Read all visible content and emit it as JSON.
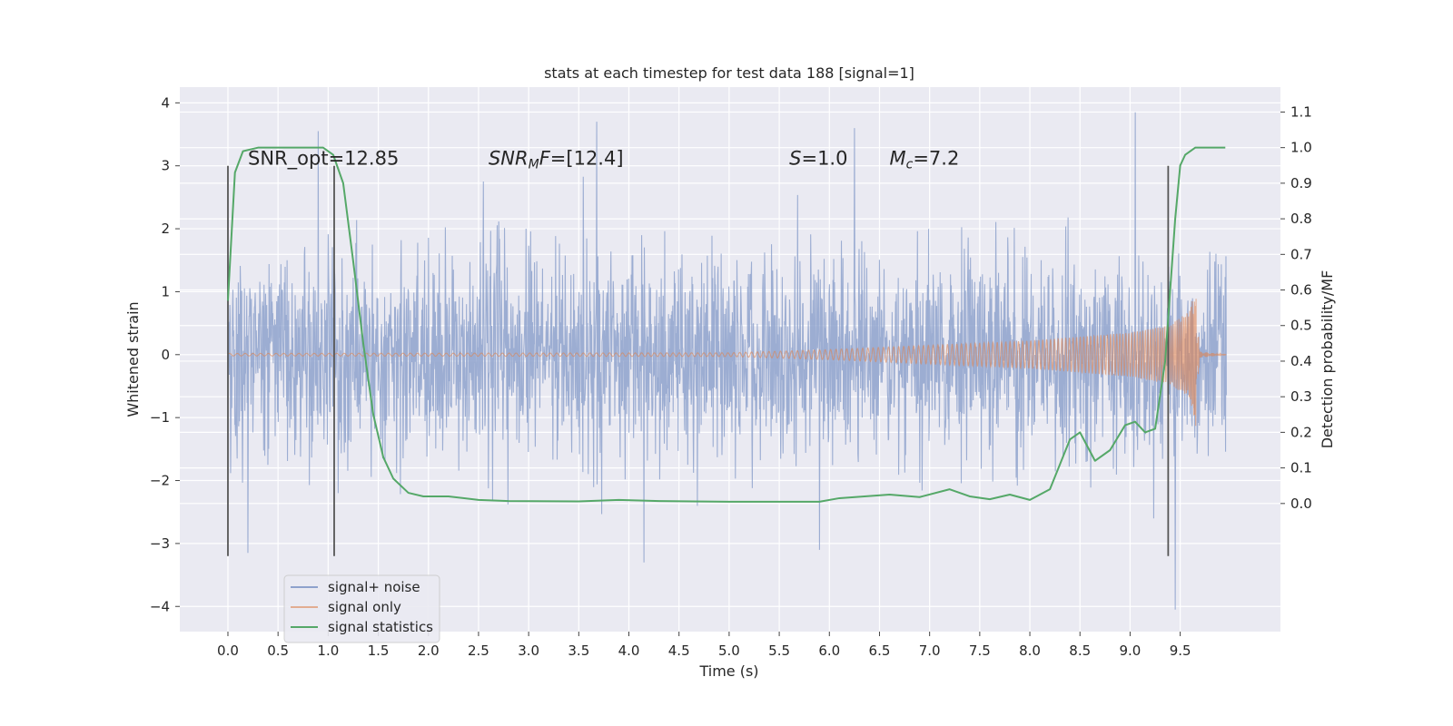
{
  "chart_data": {
    "type": "line",
    "title": "stats at each timestep for test data 188 [signal=1]",
    "xlabel": "Time (s)",
    "ylabel": "Whitened strain",
    "y2label": "Detection probability/MF",
    "xlim": [
      -0.48,
      10.5
    ],
    "ylim": [
      -4.4,
      4.25
    ],
    "y2lim": [
      -0.36,
      1.17
    ],
    "x_ticks": [
      "0.0",
      "0.5",
      "1.0",
      "1.5",
      "2.0",
      "2.5",
      "3.0",
      "3.5",
      "4.0",
      "4.5",
      "5.0",
      "5.5",
      "6.0",
      "6.5",
      "7.0",
      "7.5",
      "8.0",
      "8.5",
      "9.0",
      "9.5"
    ],
    "y_ticks": [
      "4",
      "3",
      "2",
      "1",
      "0",
      "−1",
      "−2",
      "−3",
      "−4"
    ],
    "y2_ticks": [
      "1.1",
      "1.0",
      "0.9",
      "0.8",
      "0.7",
      "0.6",
      "0.5",
      "0.4",
      "0.3",
      "0.2",
      "0.1",
      "0.0"
    ],
    "grid": true,
    "legend_position": "lower-left",
    "colors": {
      "background": "#eaeaf2",
      "noise": "#8ea2cc",
      "signal": "#dd8452",
      "stat": "#55a868",
      "vline": "#555555"
    },
    "annotations": [
      {
        "text": "SNR_opt=12.85",
        "x": 0.2,
        "y": 3.0
      },
      {
        "text": "SNRMF=[12.4]",
        "x": 2.6,
        "y": 3.0
      },
      {
        "text": "S=1.0",
        "x": 5.6,
        "y": 3.0
      },
      {
        "text": "Mc=7.2",
        "x": 6.6,
        "y": 3.0
      }
    ],
    "vertical_lines": [
      {
        "x": 0.0,
        "ymin": -3.2,
        "ymax": 3.0
      },
      {
        "x": 1.06,
        "ymin": -3.2,
        "ymax": 3.0
      },
      {
        "x": 9.38,
        "ymin": -3.2,
        "ymax": 3.0
      }
    ],
    "series": [
      {
        "name": "signal+ noise",
        "x_range": [
          0.0,
          9.96
        ],
        "amplitude_std": 0.8,
        "peaks": [
          {
            "x": 0.2,
            "y": -3.15
          },
          {
            "x": 0.9,
            "y": 3.55
          },
          {
            "x": 1.1,
            "y": -2.2
          },
          {
            "x": 2.55,
            "y": 2.75
          },
          {
            "x": 3.68,
            "y": 3.7
          },
          {
            "x": 4.15,
            "y": -3.3
          },
          {
            "x": 5.9,
            "y": -3.1
          },
          {
            "x": 6.25,
            "y": 3.6
          },
          {
            "x": 9.05,
            "y": 3.85
          },
          {
            "x": 9.45,
            "y": -4.05
          }
        ]
      },
      {
        "name": "signal only",
        "description": "chirp",
        "envelope": [
          {
            "x": 0.0,
            "y": 0.02
          },
          {
            "x": 5.0,
            "y": 0.03
          },
          {
            "x": 6.0,
            "y": 0.08
          },
          {
            "x": 7.0,
            "y": 0.15
          },
          {
            "x": 8.0,
            "y": 0.22
          },
          {
            "x": 9.0,
            "y": 0.35
          },
          {
            "x": 9.4,
            "y": 0.47
          },
          {
            "x": 9.6,
            "y": 0.7
          },
          {
            "x": 9.67,
            "y": 1.25
          },
          {
            "x": 9.69,
            "y": 0.05
          },
          {
            "x": 9.96,
            "y": 0.0
          }
        ]
      },
      {
        "name": "signal statistics",
        "axis": "right",
        "points": [
          {
            "x": 0.0,
            "y": 0.57
          },
          {
            "x": 0.07,
            "y": 0.93
          },
          {
            "x": 0.15,
            "y": 0.99
          },
          {
            "x": 0.3,
            "y": 1.0
          },
          {
            "x": 0.6,
            "y": 1.0
          },
          {
            "x": 0.95,
            "y": 1.0
          },
          {
            "x": 1.05,
            "y": 0.98
          },
          {
            "x": 1.15,
            "y": 0.9
          },
          {
            "x": 1.25,
            "y": 0.68
          },
          {
            "x": 1.35,
            "y": 0.45
          },
          {
            "x": 1.45,
            "y": 0.25
          },
          {
            "x": 1.55,
            "y": 0.13
          },
          {
            "x": 1.65,
            "y": 0.07
          },
          {
            "x": 1.8,
            "y": 0.03
          },
          {
            "x": 1.95,
            "y": 0.02
          },
          {
            "x": 2.2,
            "y": 0.02
          },
          {
            "x": 2.5,
            "y": 0.01
          },
          {
            "x": 2.8,
            "y": 0.007
          },
          {
            "x": 3.5,
            "y": 0.006
          },
          {
            "x": 3.9,
            "y": 0.01
          },
          {
            "x": 4.3,
            "y": 0.007
          },
          {
            "x": 5.0,
            "y": 0.005
          },
          {
            "x": 5.5,
            "y": 0.005
          },
          {
            "x": 5.9,
            "y": 0.005
          },
          {
            "x": 6.1,
            "y": 0.015
          },
          {
            "x": 6.35,
            "y": 0.02
          },
          {
            "x": 6.6,
            "y": 0.025
          },
          {
            "x": 6.9,
            "y": 0.018
          },
          {
            "x": 7.2,
            "y": 0.04
          },
          {
            "x": 7.4,
            "y": 0.02
          },
          {
            "x": 7.6,
            "y": 0.012
          },
          {
            "x": 7.8,
            "y": 0.025
          },
          {
            "x": 8.0,
            "y": 0.01
          },
          {
            "x": 8.2,
            "y": 0.04
          },
          {
            "x": 8.3,
            "y": 0.11
          },
          {
            "x": 8.4,
            "y": 0.18
          },
          {
            "x": 8.5,
            "y": 0.2
          },
          {
            "x": 8.65,
            "y": 0.12
          },
          {
            "x": 8.8,
            "y": 0.15
          },
          {
            "x": 8.95,
            "y": 0.22
          },
          {
            "x": 9.05,
            "y": 0.23
          },
          {
            "x": 9.15,
            "y": 0.2
          },
          {
            "x": 9.25,
            "y": 0.21
          },
          {
            "x": 9.35,
            "y": 0.4
          },
          {
            "x": 9.45,
            "y": 0.8
          },
          {
            "x": 9.5,
            "y": 0.95
          },
          {
            "x": 9.55,
            "y": 0.98
          },
          {
            "x": 9.65,
            "y": 1.0
          },
          {
            "x": 9.95,
            "y": 1.0
          }
        ]
      }
    ]
  }
}
